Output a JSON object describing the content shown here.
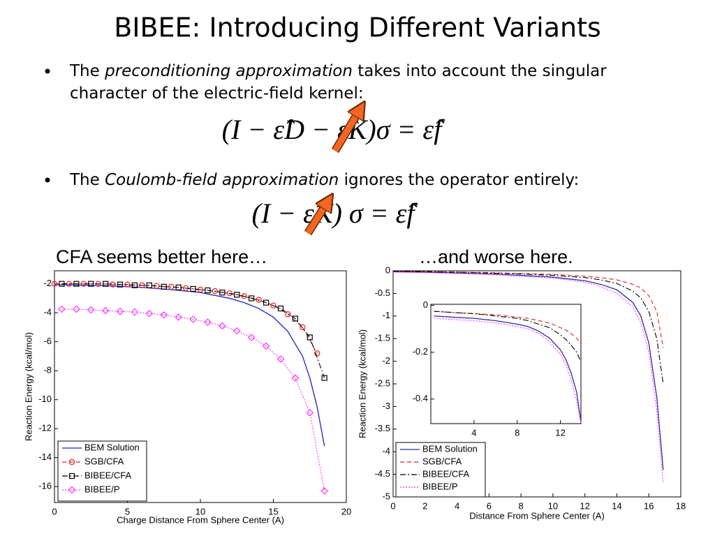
{
  "title": "BIBEE: Introducing Different Variants",
  "bullets": [
    {
      "lines": [
        [
          {
            "text": "The "
          },
          {
            "text": "preconditioning approximation",
            "italic": true
          },
          {
            "text": " takes into account the singular"
          }
        ],
        [
          {
            "text": "character of the electric-field kernel:"
          }
        ]
      ],
      "equation": "(I − ε̂D − ε̂K)σ = ε̂f"
    },
    {
      "lines": [
        [
          {
            "text": "The "
          },
          {
            "text": "Coulomb-field approximation",
            "italic": true
          },
          {
            "text": " ignores the operator entirely:"
          }
        ]
      ],
      "equation": "(I − ε̂K) σ = ε̂f"
    }
  ],
  "chart_data": [
    {
      "type": "line",
      "annotation": "CFA seems better here…",
      "xlabel": "Charge Distance From Sphere Center (A)",
      "ylabel": "Reaction Energy (kcal/mol)",
      "xlim": [
        0,
        20
      ],
      "ylim": [
        -17.1,
        -1.1
      ],
      "xticks": [
        0,
        5,
        10,
        15,
        20
      ],
      "yticks": [
        -2,
        -4,
        -6,
        -8,
        -10,
        -12,
        -14,
        -16
      ],
      "legend": "lower left",
      "series": [
        {
          "name": "BEM Solution",
          "color": "#1f1fd0",
          "dash": "solid",
          "marker": "none",
          "x": [
            0,
            2,
            4,
            6,
            8,
            10,
            12,
            13,
            14,
            15,
            16,
            17,
            17.5,
            18,
            18.5
          ],
          "values": [
            -2.05,
            -2.1,
            -2.15,
            -2.25,
            -2.4,
            -2.6,
            -3.0,
            -3.3,
            -3.7,
            -4.3,
            -5.3,
            -7.0,
            -8.5,
            -10.5,
            -13.2
          ]
        },
        {
          "name": "SGB/CFA",
          "color": "#e02020",
          "dash": "dashed",
          "marker": "circle",
          "x": [
            0,
            1,
            2,
            3,
            4,
            5,
            6,
            7,
            8,
            9,
            10,
            11,
            12,
            13,
            14,
            15,
            16,
            17,
            18
          ],
          "values": [
            -2.0,
            -2.0,
            -2.0,
            -2.0,
            -2.05,
            -2.05,
            -2.1,
            -2.15,
            -2.2,
            -2.3,
            -2.4,
            -2.5,
            -2.65,
            -2.85,
            -3.1,
            -3.5,
            -4.1,
            -5.0,
            -6.8
          ]
        },
        {
          "name": "BIBEE/CFA",
          "color": "#000000",
          "dash": "dashdot",
          "marker": "square",
          "x": [
            0.5,
            1.5,
            2.5,
            3.5,
            4.5,
            5.5,
            6.5,
            7.5,
            8.5,
            9.5,
            10.5,
            11.5,
            12.5,
            13.5,
            14.5,
            15.5,
            16.5,
            17.5,
            18.5
          ],
          "values": [
            -2.0,
            -2.0,
            -2.0,
            -2.0,
            -2.05,
            -2.1,
            -2.1,
            -2.2,
            -2.25,
            -2.35,
            -2.45,
            -2.6,
            -2.75,
            -3.0,
            -3.3,
            -3.7,
            -4.4,
            -5.7,
            -8.5
          ]
        },
        {
          "name": "BIBEE/P",
          "color": "#ff33ff",
          "dash": "dotted",
          "marker": "diamond",
          "x": [
            0.5,
            1.5,
            2.5,
            3.5,
            4.5,
            5.5,
            6.5,
            7.5,
            8.5,
            9.5,
            10.5,
            11.5,
            12.5,
            13.5,
            14.5,
            15.5,
            16.5,
            17.5,
            18.5
          ],
          "values": [
            -3.75,
            -3.75,
            -3.8,
            -3.85,
            -3.9,
            -3.95,
            -4.05,
            -4.15,
            -4.3,
            -4.45,
            -4.65,
            -4.9,
            -5.25,
            -5.7,
            -6.3,
            -7.2,
            -8.5,
            -10.9,
            -16.3
          ]
        }
      ]
    },
    {
      "type": "line",
      "annotation": "…and worse here.",
      "xlabel": "Distance From Sphere Center (A)",
      "ylabel": "Reaction Energy (kcal/mol)",
      "xlim": [
        0,
        18
      ],
      "ylim": [
        -5,
        0
      ],
      "xticks": [
        0,
        2,
        4,
        6,
        8,
        10,
        12,
        14,
        16,
        18
      ],
      "yticks": [
        0,
        -0.5,
        -1,
        -1.5,
        -2,
        -2.5,
        -3,
        -3.5,
        -4,
        -4.5,
        -5
      ],
      "legend": "lower left",
      "series": [
        {
          "name": "BEM Solution",
          "color": "#2b2ba8",
          "dash": "solid",
          "marker": "none",
          "x": [
            0,
            2,
            4,
            6,
            8,
            10,
            12,
            13,
            14,
            15,
            15.5,
            16,
            16.5,
            16.9
          ],
          "values": [
            -0.02,
            -0.03,
            -0.05,
            -0.07,
            -0.1,
            -0.14,
            -0.22,
            -0.3,
            -0.42,
            -0.7,
            -1.0,
            -1.6,
            -2.8,
            -4.4
          ]
        },
        {
          "name": "SGB/CFA",
          "color": "#e02020",
          "dash": "dashed",
          "marker": "none",
          "x": [
            0,
            2,
            4,
            6,
            8,
            10,
            12,
            13,
            14,
            15,
            15.5,
            16,
            16.5,
            16.9
          ],
          "values": [
            -0.01,
            -0.02,
            -0.03,
            -0.04,
            -0.06,
            -0.08,
            -0.12,
            -0.15,
            -0.2,
            -0.3,
            -0.38,
            -0.55,
            -0.9,
            -1.7
          ]
        },
        {
          "name": "BIBEE/CFA",
          "color": "#000000",
          "dash": "dashdot",
          "marker": "none",
          "x": [
            0,
            2,
            4,
            6,
            8,
            10,
            12,
            13,
            14,
            15,
            15.5,
            16,
            16.5,
            16.9
          ],
          "values": [
            -0.01,
            -0.02,
            -0.03,
            -0.05,
            -0.07,
            -0.1,
            -0.15,
            -0.2,
            -0.28,
            -0.45,
            -0.6,
            -0.9,
            -1.5,
            -2.5
          ]
        },
        {
          "name": "BIBEE/P",
          "color": "#ff33ff",
          "dash": "dotted",
          "marker": "none",
          "x": [
            0,
            2,
            4,
            6,
            8,
            10,
            12,
            13,
            14,
            15,
            15.5,
            16,
            16.5,
            16.9
          ],
          "values": [
            -0.03,
            -0.04,
            -0.06,
            -0.08,
            -0.12,
            -0.16,
            -0.25,
            -0.35,
            -0.5,
            -0.8,
            -1.15,
            -1.8,
            -3.1,
            -4.7
          ]
        }
      ],
      "inset": {
        "xlim": [
          0,
          13.9
        ],
        "ylim": [
          -0.505,
          0.005
        ],
        "xticks": [
          4,
          8,
          12
        ],
        "yticks": [
          0,
          -0.2,
          -0.4
        ],
        "series": [
          {
            "x": [
              0.3,
              2,
              4,
              6,
              8,
              9,
              10,
              11,
              12,
              12.5,
              13,
              13.5,
              13.9
            ],
            "values": [
              -0.045,
              -0.05,
              -0.055,
              -0.065,
              -0.08,
              -0.09,
              -0.11,
              -0.14,
              -0.19,
              -0.23,
              -0.29,
              -0.37,
              -0.5
            ]
          },
          {
            "x": [
              0.3,
              2,
              4,
              6,
              8,
              9,
              10,
              11,
              12,
              12.5,
              13,
              13.5,
              13.9
            ],
            "values": [
              -0.025,
              -0.03,
              -0.035,
              -0.04,
              -0.05,
              -0.055,
              -0.065,
              -0.075,
              -0.095,
              -0.105,
              -0.12,
              -0.14,
              -0.165
            ]
          },
          {
            "x": [
              0.3,
              2,
              4,
              6,
              8,
              9,
              10,
              11,
              12,
              12.5,
              13,
              13.5,
              13.9
            ],
            "values": [
              -0.025,
              -0.03,
              -0.035,
              -0.045,
              -0.055,
              -0.065,
              -0.08,
              -0.095,
              -0.125,
              -0.145,
              -0.17,
              -0.2,
              -0.24
            ]
          },
          {
            "x": [
              0.3,
              2,
              4,
              6,
              8,
              9,
              10,
              11,
              12,
              12.5,
              13,
              13.5,
              13.9
            ],
            "values": [
              -0.055,
              -0.06,
              -0.065,
              -0.075,
              -0.09,
              -0.1,
              -0.12,
              -0.155,
              -0.21,
              -0.25,
              -0.32,
              -0.41,
              -0.5
            ]
          }
        ]
      }
    }
  ]
}
